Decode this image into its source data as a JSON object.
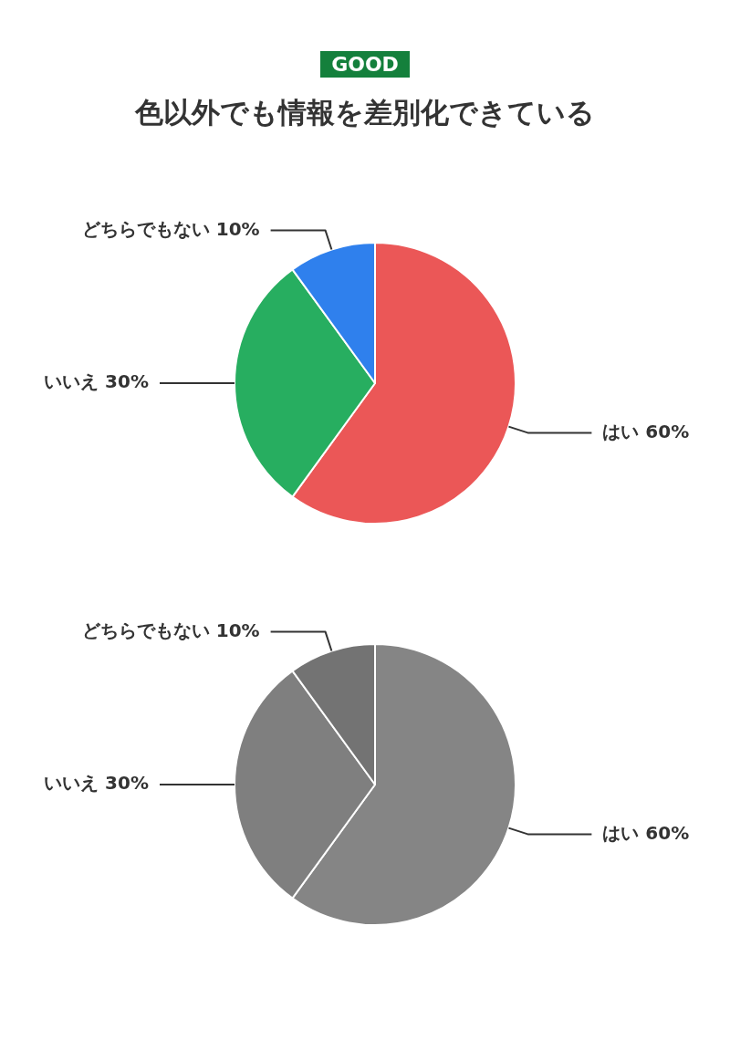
{
  "chart_data": [
    {
      "type": "pie",
      "subtitle": "GOOD",
      "title": "色以外でも情報を差別化できている",
      "categories": [
        "はい",
        "いいえ",
        "どちらでもない"
      ],
      "values": [
        60,
        30,
        10
      ],
      "value_labels": [
        "60%",
        "30%",
        "10%"
      ],
      "colors": [
        "#eb5757",
        "#27ae60",
        "#2f80ed"
      ],
      "legend": false
    },
    {
      "type": "pie",
      "categories": [
        "はい",
        "いいえ",
        "どちらでもない"
      ],
      "values": [
        60,
        30,
        10
      ],
      "value_labels": [
        "60%",
        "30%",
        "10%"
      ],
      "colors": [
        "#858585",
        "#7f7f7f",
        "#737373"
      ],
      "legend": false
    }
  ]
}
